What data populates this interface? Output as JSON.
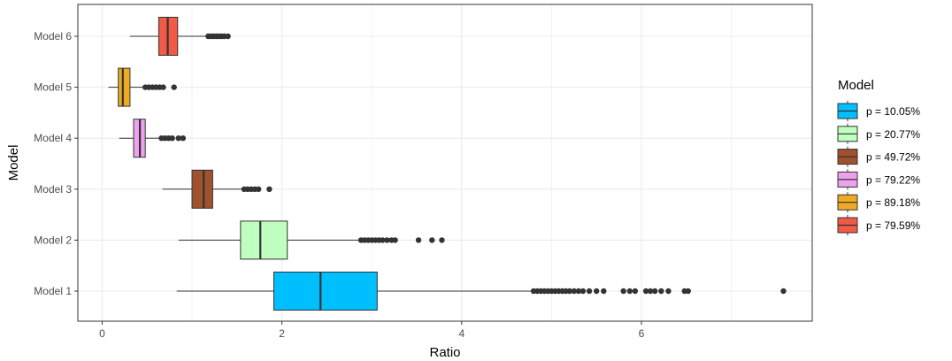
{
  "chart_data": {
    "type": "boxplot",
    "orientation": "horizontal",
    "title": "",
    "xlabel": "Ratio",
    "ylabel": "Model",
    "xlim": [
      -0.27,
      7.9
    ],
    "x_ticks": [
      0,
      2,
      4,
      6
    ],
    "x_tick_labels": [
      "0",
      "2",
      "4",
      "6"
    ],
    "grid": true,
    "legend_position": "right",
    "legend_title": "Model",
    "categories": [
      "Model 1",
      "Model 2",
      "Model 3",
      "Model 4",
      "Model 5",
      "Model 6"
    ],
    "series": [
      {
        "category": "Model 1",
        "legend": "p = 10.05%",
        "color": "#00BFFF",
        "whisker_low": 0.83,
        "q1": 1.91,
        "median": 2.43,
        "q3": 3.06,
        "whisker_high": 4.78,
        "outliers": [
          4.8,
          4.84,
          4.88,
          4.92,
          4.96,
          5.0,
          5.04,
          5.08,
          5.12,
          5.16,
          5.2,
          5.25,
          5.3,
          5.35,
          5.42,
          5.5,
          5.58,
          5.8,
          5.87,
          5.93,
          6.05,
          6.1,
          6.15,
          6.22,
          6.3,
          6.48,
          6.52,
          7.58
        ]
      },
      {
        "category": "Model 2",
        "legend": "p = 20.77%",
        "color": "#BFFFBF",
        "whisker_low": 0.85,
        "q1": 1.54,
        "median": 1.76,
        "q3": 2.06,
        "whisker_high": 2.86,
        "outliers": [
          2.88,
          2.92,
          2.96,
          3.0,
          3.04,
          3.08,
          3.12,
          3.17,
          3.22,
          3.26,
          3.52,
          3.67,
          3.78
        ]
      },
      {
        "category": "Model 3",
        "legend": "p = 49.72%",
        "color": "#A0522D",
        "whisker_low": 0.67,
        "q1": 1.0,
        "median": 1.13,
        "q3": 1.23,
        "whisker_high": 1.55,
        "outliers": [
          1.58,
          1.62,
          1.66,
          1.7,
          1.74,
          1.86
        ]
      },
      {
        "category": "Model 4",
        "legend": "p = 79.22%",
        "color": "#EEA2EE",
        "whisker_low": 0.19,
        "q1": 0.35,
        "median": 0.42,
        "q3": 0.48,
        "whisker_high": 0.63,
        "outliers": [
          0.66,
          0.7,
          0.74,
          0.78,
          0.85,
          0.9
        ]
      },
      {
        "category": "Model 5",
        "legend": "p = 89.18%",
        "color": "#EEAA22",
        "whisker_low": 0.07,
        "q1": 0.18,
        "median": 0.23,
        "q3": 0.31,
        "whisker_high": 0.45,
        "outliers": [
          0.48,
          0.52,
          0.56,
          0.6,
          0.64,
          0.68,
          0.8
        ]
      },
      {
        "category": "Model 6",
        "legend": "p = 79.59%",
        "color": "#F05A46",
        "whisker_low": 0.31,
        "q1": 0.63,
        "median": 0.73,
        "q3": 0.84,
        "whisker_high": 1.15,
        "outliers": [
          1.18,
          1.21,
          1.24,
          1.27,
          1.3,
          1.33,
          1.36,
          1.4
        ]
      }
    ],
    "legend_items": [
      "p = 10.05%",
      "p = 20.77%",
      "p = 49.72%",
      "p = 79.22%",
      "p = 89.18%",
      "p = 79.59%"
    ]
  }
}
